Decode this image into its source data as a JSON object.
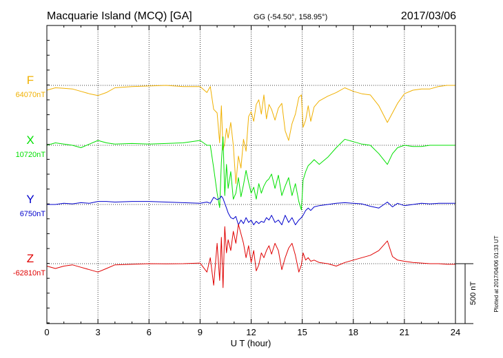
{
  "header": {
    "station": "Macquarie Island (MCQ)  [GA]",
    "coords": "GG (-54.50°, 158.95°)",
    "date": "2017/03/06"
  },
  "side_note": "Plotted at 2017/04/06 01:33 UT",
  "colors": {
    "F": "#f0b000",
    "X": "#00e000",
    "Y": "#0000cc",
    "Z": "#e00000",
    "frame": "#000000",
    "grid": "#000000"
  },
  "chart_data": {
    "type": "line",
    "xlabel": "U T (hour)",
    "xlim": [
      0,
      24
    ],
    "xticks": [
      0,
      3,
      6,
      9,
      12,
      15,
      18,
      21,
      24
    ],
    "xtick_labels": [
      "0",
      "3",
      "6",
      "9",
      "12",
      "15",
      "18",
      "21",
      "24"
    ],
    "scale_bar": {
      "label": "500 nT",
      "value_nT": 500
    },
    "series": [
      {
        "name": "F",
        "baseline_label": "64070nT",
        "baseline_nT": 64070,
        "color": "#f0b000",
        "points": [
          [
            0,
            64030
          ],
          [
            0.5,
            64050
          ],
          [
            1,
            64045
          ],
          [
            1.5,
            64040
          ],
          [
            2,
            64020
          ],
          [
            2.5,
            64000
          ],
          [
            3,
            63985
          ],
          [
            3.5,
            64010
          ],
          [
            4,
            64050
          ],
          [
            5,
            64060
          ],
          [
            6,
            64065
          ],
          [
            7,
            64070
          ],
          [
            8,
            64060
          ],
          [
            9,
            64060
          ],
          [
            9.4,
            64010
          ],
          [
            9.6,
            64060
          ],
          [
            9.8,
            63870
          ],
          [
            10,
            63840
          ],
          [
            10.15,
            63590
          ],
          [
            10.25,
            63900
          ],
          [
            10.35,
            63530
          ],
          [
            10.45,
            63590
          ],
          [
            10.55,
            63710
          ],
          [
            10.65,
            63630
          ],
          [
            10.8,
            63760
          ],
          [
            10.95,
            63570
          ],
          [
            11.1,
            63250
          ],
          [
            11.25,
            63480
          ],
          [
            11.4,
            63380
          ],
          [
            11.55,
            63620
          ],
          [
            11.7,
            63520
          ],
          [
            11.85,
            63810
          ],
          [
            12,
            63850
          ],
          [
            12.15,
            63770
          ],
          [
            12.3,
            63910
          ],
          [
            12.45,
            63950
          ],
          [
            12.6,
            63830
          ],
          [
            12.75,
            63990
          ],
          [
            12.9,
            63790
          ],
          [
            13.05,
            63910
          ],
          [
            13.2,
            63870
          ],
          [
            13.4,
            63780
          ],
          [
            13.6,
            63880
          ],
          [
            13.8,
            63920
          ],
          [
            14,
            63690
          ],
          [
            14.2,
            63610
          ],
          [
            14.4,
            63750
          ],
          [
            14.6,
            63830
          ],
          [
            14.8,
            63970
          ],
          [
            14.95,
            63990
          ],
          [
            15.05,
            63720
          ],
          [
            15.2,
            63780
          ],
          [
            15.35,
            63900
          ],
          [
            15.5,
            63770
          ],
          [
            15.7,
            63890
          ],
          [
            16,
            63940
          ],
          [
            16.5,
            63980
          ],
          [
            17,
            64010
          ],
          [
            17.5,
            64050
          ],
          [
            18,
            64020
          ],
          [
            18.5,
            64000
          ],
          [
            19,
            63990
          ],
          [
            19.5,
            63900
          ],
          [
            20,
            63760
          ],
          [
            20.3,
            63840
          ],
          [
            20.6,
            63920
          ],
          [
            21,
            64000
          ],
          [
            21.5,
            64030
          ],
          [
            22,
            64040
          ],
          [
            22.5,
            64040
          ],
          [
            23,
            64060
          ],
          [
            23.5,
            64070
          ],
          [
            24,
            64070
          ]
        ]
      },
      {
        "name": "X",
        "baseline_label": "10720nT",
        "baseline_nT": 10720,
        "color": "#00e000",
        "points": [
          [
            0,
            10720
          ],
          [
            0.5,
            10740
          ],
          [
            1,
            10730
          ],
          [
            1.5,
            10720
          ],
          [
            2,
            10700
          ],
          [
            2.5,
            10730
          ],
          [
            3,
            10760
          ],
          [
            3.5,
            10740
          ],
          [
            4,
            10730
          ],
          [
            5,
            10735
          ],
          [
            6,
            10730
          ],
          [
            7,
            10735
          ],
          [
            8,
            10740
          ],
          [
            9,
            10760
          ],
          [
            9.4,
            10720
          ],
          [
            9.6,
            10720
          ],
          [
            9.8,
            10530
          ],
          [
            10,
            10320
          ],
          [
            10.15,
            10200
          ],
          [
            10.25,
            10580
          ],
          [
            10.35,
            10790
          ],
          [
            10.45,
            10300
          ],
          [
            10.55,
            10560
          ],
          [
            10.65,
            10360
          ],
          [
            10.8,
            10500
          ],
          [
            10.95,
            10270
          ],
          [
            11.1,
            10320
          ],
          [
            11.25,
            10450
          ],
          [
            11.4,
            10290
          ],
          [
            11.55,
            10390
          ],
          [
            11.7,
            10510
          ],
          [
            11.85,
            10410
          ],
          [
            12,
            10320
          ],
          [
            12.15,
            10370
          ],
          [
            12.3,
            10270
          ],
          [
            12.45,
            10400
          ],
          [
            12.6,
            10320
          ],
          [
            12.75,
            10380
          ],
          [
            12.9,
            10420
          ],
          [
            13.05,
            10440
          ],
          [
            13.2,
            10480
          ],
          [
            13.4,
            10360
          ],
          [
            13.6,
            10470
          ],
          [
            13.8,
            10300
          ],
          [
            14,
            10380
          ],
          [
            14.2,
            10450
          ],
          [
            14.4,
            10300
          ],
          [
            14.6,
            10400
          ],
          [
            14.8,
            10250
          ],
          [
            14.95,
            10180
          ],
          [
            15.05,
            10430
          ],
          [
            15.2,
            10500
          ],
          [
            15.35,
            10550
          ],
          [
            15.5,
            10570
          ],
          [
            15.7,
            10600
          ],
          [
            16,
            10560
          ],
          [
            16.5,
            10620
          ],
          [
            17,
            10700
          ],
          [
            17.5,
            10770
          ],
          [
            18,
            10750
          ],
          [
            18.5,
            10730
          ],
          [
            19,
            10720
          ],
          [
            19.5,
            10650
          ],
          [
            20,
            10560
          ],
          [
            20.3,
            10650
          ],
          [
            20.6,
            10700
          ],
          [
            21,
            10720
          ],
          [
            21.5,
            10710
          ],
          [
            22,
            10710
          ],
          [
            22.5,
            10720
          ],
          [
            23,
            10720
          ],
          [
            23.5,
            10720
          ],
          [
            24,
            10720
          ]
        ]
      },
      {
        "name": "Y",
        "baseline_label": "6750nT",
        "baseline_nT": 6750,
        "color": "#0000cc",
        "points": [
          [
            0,
            6750
          ],
          [
            0.5,
            6750
          ],
          [
            1,
            6760
          ],
          [
            1.5,
            6755
          ],
          [
            2,
            6765
          ],
          [
            2.5,
            6760
          ],
          [
            3,
            6775
          ],
          [
            3.5,
            6775
          ],
          [
            4,
            6770
          ],
          [
            5,
            6775
          ],
          [
            6,
            6775
          ],
          [
            7,
            6770
          ],
          [
            8,
            6765
          ],
          [
            9,
            6760
          ],
          [
            9.4,
            6770
          ],
          [
            9.6,
            6760
          ],
          [
            9.8,
            6810
          ],
          [
            10,
            6790
          ],
          [
            10.15,
            6800
          ],
          [
            10.25,
            6820
          ],
          [
            10.35,
            6800
          ],
          [
            10.45,
            6760
          ],
          [
            10.55,
            6720
          ],
          [
            10.65,
            6680
          ],
          [
            10.8,
            6640
          ],
          [
            10.95,
            6630
          ],
          [
            11.1,
            6650
          ],
          [
            11.25,
            6580
          ],
          [
            11.4,
            6620
          ],
          [
            11.55,
            6590
          ],
          [
            11.7,
            6640
          ],
          [
            11.85,
            6600
          ],
          [
            12,
            6620
          ],
          [
            12.15,
            6580
          ],
          [
            12.3,
            6610
          ],
          [
            12.45,
            6590
          ],
          [
            12.6,
            6610
          ],
          [
            12.75,
            6600
          ],
          [
            12.9,
            6640
          ],
          [
            13.05,
            6620
          ],
          [
            13.2,
            6660
          ],
          [
            13.4,
            6600
          ],
          [
            13.6,
            6620
          ],
          [
            13.8,
            6580
          ],
          [
            14,
            6660
          ],
          [
            14.2,
            6600
          ],
          [
            14.4,
            6640
          ],
          [
            14.6,
            6580
          ],
          [
            14.8,
            6620
          ],
          [
            14.95,
            6640
          ],
          [
            15.05,
            6660
          ],
          [
            15.2,
            6700
          ],
          [
            15.35,
            6720
          ],
          [
            15.5,
            6700
          ],
          [
            15.7,
            6730
          ],
          [
            16,
            6740
          ],
          [
            16.5,
            6750
          ],
          [
            17,
            6760
          ],
          [
            17.5,
            6765
          ],
          [
            18,
            6760
          ],
          [
            18.5,
            6755
          ],
          [
            19,
            6735
          ],
          [
            19.5,
            6720
          ],
          [
            20,
            6770
          ],
          [
            20.3,
            6730
          ],
          [
            20.6,
            6760
          ],
          [
            21,
            6740
          ],
          [
            21.5,
            6750
          ],
          [
            22,
            6760
          ],
          [
            22.5,
            6755
          ],
          [
            23,
            6760
          ],
          [
            23.5,
            6760
          ],
          [
            24,
            6760
          ]
        ]
      },
      {
        "name": "Z",
        "baseline_label": "-62810nT",
        "baseline_nT": -62810,
        "color": "#e00000",
        "points": [
          [
            0,
            -62830
          ],
          [
            0.5,
            -62850
          ],
          [
            1,
            -62830
          ],
          [
            1.5,
            -62820
          ],
          [
            2,
            -62840
          ],
          [
            2.5,
            -62860
          ],
          [
            3,
            -62880
          ],
          [
            3.5,
            -62850
          ],
          [
            4,
            -62820
          ],
          [
            5,
            -62815
          ],
          [
            6,
            -62810
          ],
          [
            7,
            -62812
          ],
          [
            8,
            -62810
          ],
          [
            9,
            -62805
          ],
          [
            9.4,
            -62880
          ],
          [
            9.6,
            -62760
          ],
          [
            9.8,
            -62990
          ],
          [
            10,
            -62640
          ],
          [
            10.15,
            -62950
          ],
          [
            10.25,
            -62590
          ],
          [
            10.35,
            -63010
          ],
          [
            10.45,
            -62500
          ],
          [
            10.55,
            -62720
          ],
          [
            10.65,
            -62610
          ],
          [
            10.8,
            -62700
          ],
          [
            10.95,
            -62540
          ],
          [
            11.1,
            -62640
          ],
          [
            11.25,
            -62480
          ],
          [
            11.4,
            -62560
          ],
          [
            11.55,
            -62640
          ],
          [
            11.7,
            -62760
          ],
          [
            11.85,
            -62660
          ],
          [
            12,
            -62800
          ],
          [
            12.15,
            -62700
          ],
          [
            12.3,
            -62870
          ],
          [
            12.45,
            -62820
          ],
          [
            12.6,
            -62720
          ],
          [
            12.75,
            -62760
          ],
          [
            12.9,
            -62700
          ],
          [
            13.05,
            -62660
          ],
          [
            13.2,
            -62730
          ],
          [
            13.4,
            -62640
          ],
          [
            13.6,
            -62700
          ],
          [
            13.8,
            -62860
          ],
          [
            14,
            -62760
          ],
          [
            14.2,
            -62680
          ],
          [
            14.4,
            -62640
          ],
          [
            14.6,
            -62740
          ],
          [
            14.8,
            -62880
          ],
          [
            14.95,
            -62820
          ],
          [
            15.05,
            -62720
          ],
          [
            15.2,
            -62780
          ],
          [
            15.35,
            -62760
          ],
          [
            15.5,
            -62790
          ],
          [
            15.7,
            -62780
          ],
          [
            16,
            -62800
          ],
          [
            16.5,
            -62810
          ],
          [
            17,
            -62830
          ],
          [
            17.5,
            -62800
          ],
          [
            18,
            -62780
          ],
          [
            18.5,
            -62760
          ],
          [
            19,
            -62740
          ],
          [
            19.5,
            -62700
          ],
          [
            20,
            -62620
          ],
          [
            20.3,
            -62750
          ],
          [
            20.6,
            -62780
          ],
          [
            21,
            -62790
          ],
          [
            21.5,
            -62800
          ],
          [
            22,
            -62805
          ],
          [
            22.5,
            -62810
          ],
          [
            23,
            -62810
          ],
          [
            23.5,
            -62815
          ],
          [
            24,
            -62815
          ]
        ]
      }
    ]
  }
}
